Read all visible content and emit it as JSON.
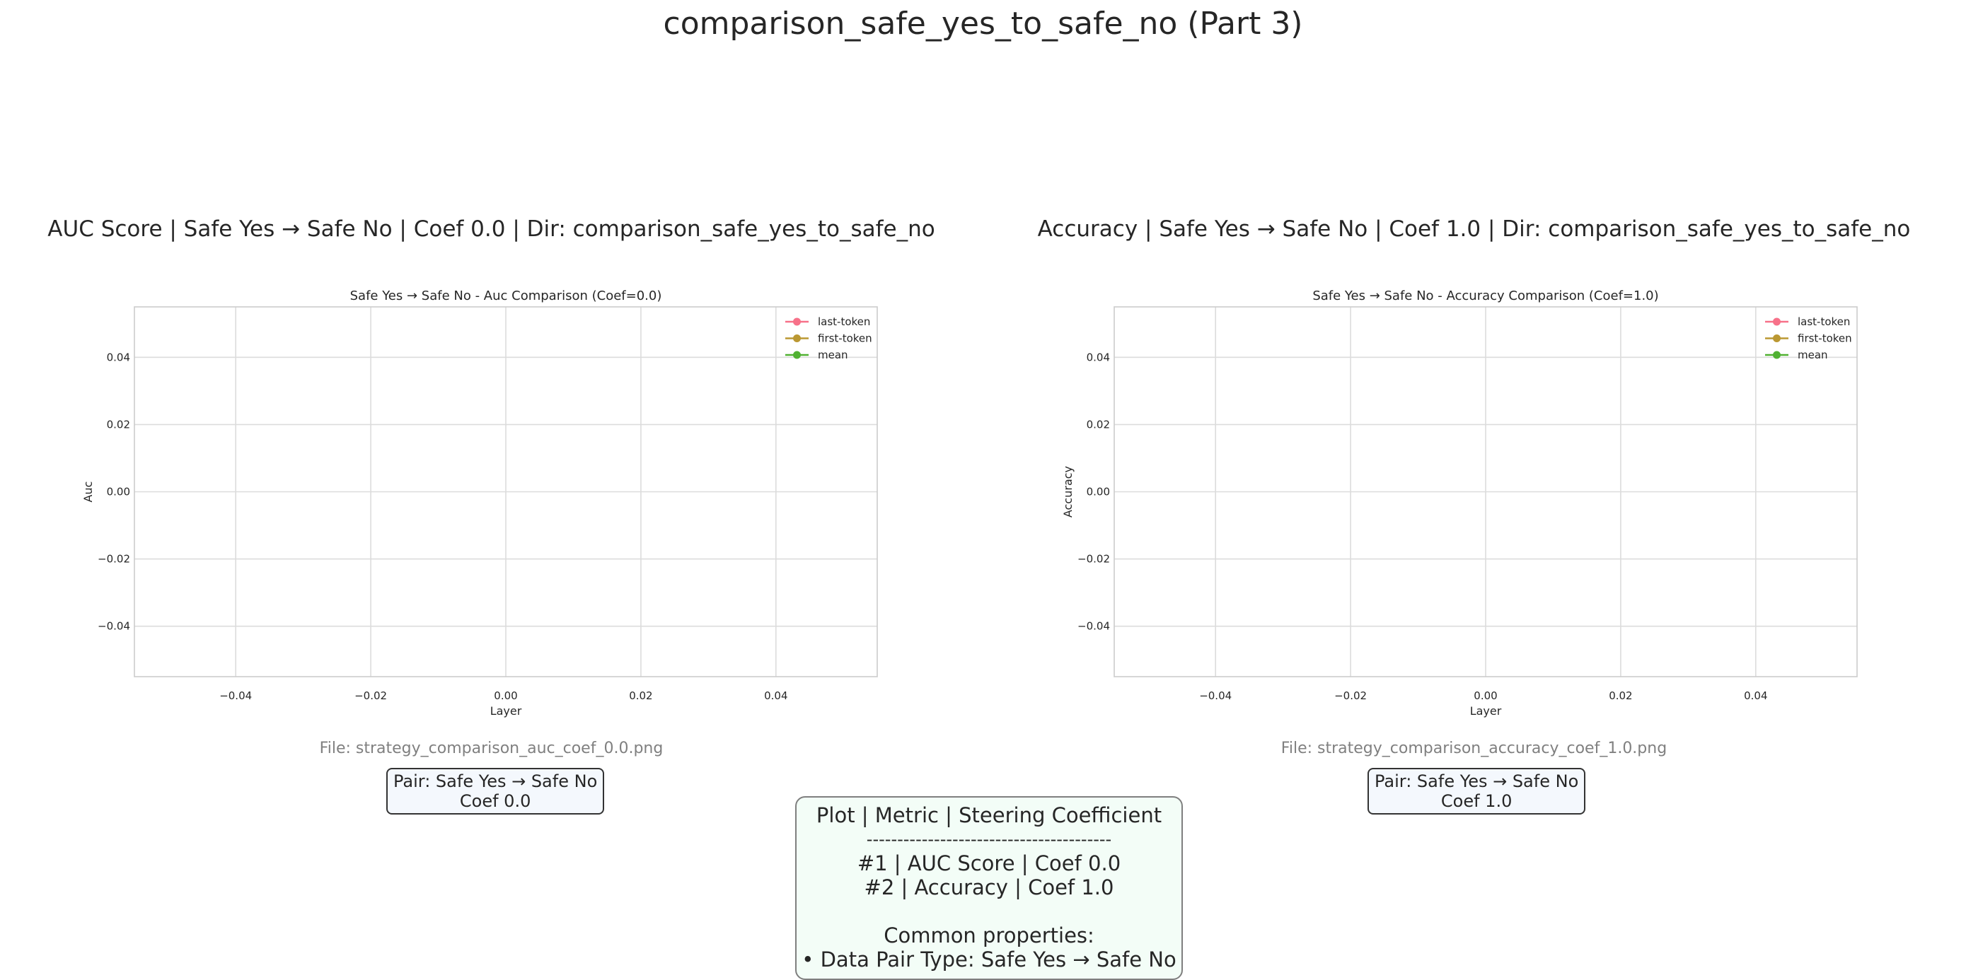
{
  "suptitle": "comparison_safe_yes_to_safe_no (Part 3)",
  "panels": [
    {
      "panel_title": "AUC Score | Safe Yes → Safe No | Coef 0.0 | Dir: comparison_safe_yes_to_safe_no",
      "file_label": "File: strategy_comparison_auc_coef_0.0.png",
      "pair_line1": "Pair: Safe Yes → Safe No",
      "pair_line2": "Coef 0.0"
    },
    {
      "panel_title": "Accuracy | Safe Yes → Safe No | Coef 1.0 | Dir: comparison_safe_yes_to_safe_no",
      "file_label": "File: strategy_comparison_accuracy_coef_1.0.png",
      "pair_line1": "Pair: Safe Yes → Safe No",
      "pair_line2": "Coef 1.0"
    }
  ],
  "summary": {
    "header": "Plot | Metric | Steering Coefficient",
    "divider": "----------------------------------------",
    "row1": "#1 | AUC Score | Coef 0.0",
    "row2": "#2 | Accuracy | Coef 1.0",
    "common_label": "Common properties:",
    "common_item": "• Data Pair Type: Safe Yes → Safe No"
  },
  "chart_data": [
    {
      "type": "line",
      "title": "Safe Yes → Safe No - Auc Comparison (Coef=0.0)",
      "xlabel": "Layer",
      "ylabel": "Auc",
      "xlim": [
        -0.055,
        0.055
      ],
      "ylim": [
        -0.055,
        0.055
      ],
      "x_ticks": [
        "−0.04",
        "−0.02",
        "0.00",
        "0.02",
        "0.04"
      ],
      "y_ticks": [
        "0.04",
        "0.02",
        "0.00",
        "−0.02",
        "−0.04"
      ],
      "x_tick_values": [
        -0.04,
        -0.02,
        0.0,
        0.02,
        0.04
      ],
      "y_tick_values": [
        0.04,
        0.02,
        0.0,
        -0.02,
        -0.04
      ],
      "grid": true,
      "legend_position": "upper right",
      "series": [
        {
          "name": "last-token",
          "color": "#f77189",
          "x": [],
          "y": []
        },
        {
          "name": "first-token",
          "color": "#bb9832",
          "x": [],
          "y": []
        },
        {
          "name": "mean",
          "color": "#50b131",
          "x": [],
          "y": []
        }
      ]
    },
    {
      "type": "line",
      "title": "Safe Yes → Safe No - Accuracy Comparison (Coef=1.0)",
      "xlabel": "Layer",
      "ylabel": "Accuracy",
      "xlim": [
        -0.055,
        0.055
      ],
      "ylim": [
        -0.055,
        0.055
      ],
      "x_ticks": [
        "−0.04",
        "−0.02",
        "0.00",
        "0.02",
        "0.04"
      ],
      "y_ticks": [
        "0.04",
        "0.02",
        "0.00",
        "−0.02",
        "−0.04"
      ],
      "x_tick_values": [
        -0.04,
        -0.02,
        0.0,
        0.02,
        0.04
      ],
      "y_tick_values": [
        0.04,
        0.02,
        0.0,
        -0.02,
        -0.04
      ],
      "grid": true,
      "legend_position": "upper right",
      "series": [
        {
          "name": "last-token",
          "color": "#f77189",
          "x": [],
          "y": []
        },
        {
          "name": "first-token",
          "color": "#bb9832",
          "x": [],
          "y": []
        },
        {
          "name": "mean",
          "color": "#50b131",
          "x": [],
          "y": []
        }
      ]
    }
  ]
}
